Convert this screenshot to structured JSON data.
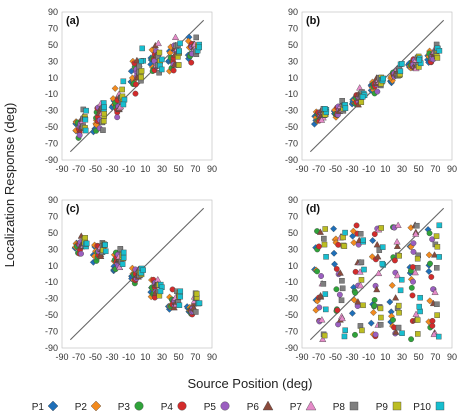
{
  "chart_data": {
    "type": "scatter",
    "xlabel": "Source Position (deg)",
    "ylabel": "Localization Response (deg)",
    "xlim": [
      -90,
      90
    ],
    "ylim": [
      -90,
      90
    ],
    "ticks": [
      -90,
      -70,
      -50,
      -30,
      -10,
      10,
      30,
      50,
      70,
      90
    ],
    "tick_labels": [
      "-90",
      "-70",
      "-50",
      "-30",
      "-10",
      "10",
      "30",
      "50",
      "70",
      "90"
    ],
    "source_positions": [
      -67.5,
      -45,
      -22.5,
      0,
      22.5,
      45,
      67.5
    ],
    "reference_line": "identity",
    "grid": false,
    "legend": {
      "placement": "bottom",
      "entries": [
        {
          "name": "P1",
          "color": "#1f6fb8",
          "marker": "diamond"
        },
        {
          "name": "P2",
          "color": "#f28a1e",
          "marker": "diamond"
        },
        {
          "name": "P3",
          "color": "#2fa33a",
          "marker": "circle"
        },
        {
          "name": "P4",
          "color": "#d32b2b",
          "marker": "circle"
        },
        {
          "name": "P5",
          "color": "#9b5fc0",
          "marker": "circle"
        },
        {
          "name": "P6",
          "color": "#8b4a3c",
          "marker": "triangle"
        },
        {
          "name": "P7",
          "color": "#e58ac8",
          "marker": "triangle"
        },
        {
          "name": "P8",
          "color": "#7f7f7f",
          "marker": "square"
        },
        {
          "name": "P9",
          "color": "#bcbd22",
          "marker": "square"
        },
        {
          "name": "P10",
          "color": "#17becf",
          "marker": "square"
        }
      ]
    },
    "panels": [
      {
        "label": "(a)",
        "pattern": "front-back-confusion",
        "mean_response": [
          -48,
          -38,
          -18,
          15,
          32,
          40,
          45
        ],
        "spread": [
          12,
          14,
          14,
          18,
          18,
          14,
          16
        ]
      },
      {
        "label": "(b)",
        "pattern": "accurate",
        "mean_response": [
          -35,
          -28,
          -15,
          3,
          15,
          28,
          38
        ],
        "spread": [
          6,
          7,
          7,
          6,
          6,
          7,
          8
        ]
      },
      {
        "label": "(c)",
        "pattern": "reversed",
        "mean_response": [
          35,
          28,
          15,
          -2,
          -18,
          -32,
          -38
        ],
        "spread": [
          8,
          9,
          10,
          9,
          10,
          10,
          10
        ]
      },
      {
        "label": "(d)",
        "pattern": "random",
        "mean_response": [
          -5,
          -5,
          -5,
          -5,
          -5,
          -5,
          -5
        ],
        "spread": [
          32,
          32,
          32,
          32,
          32,
          32,
          32
        ]
      }
    ]
  }
}
